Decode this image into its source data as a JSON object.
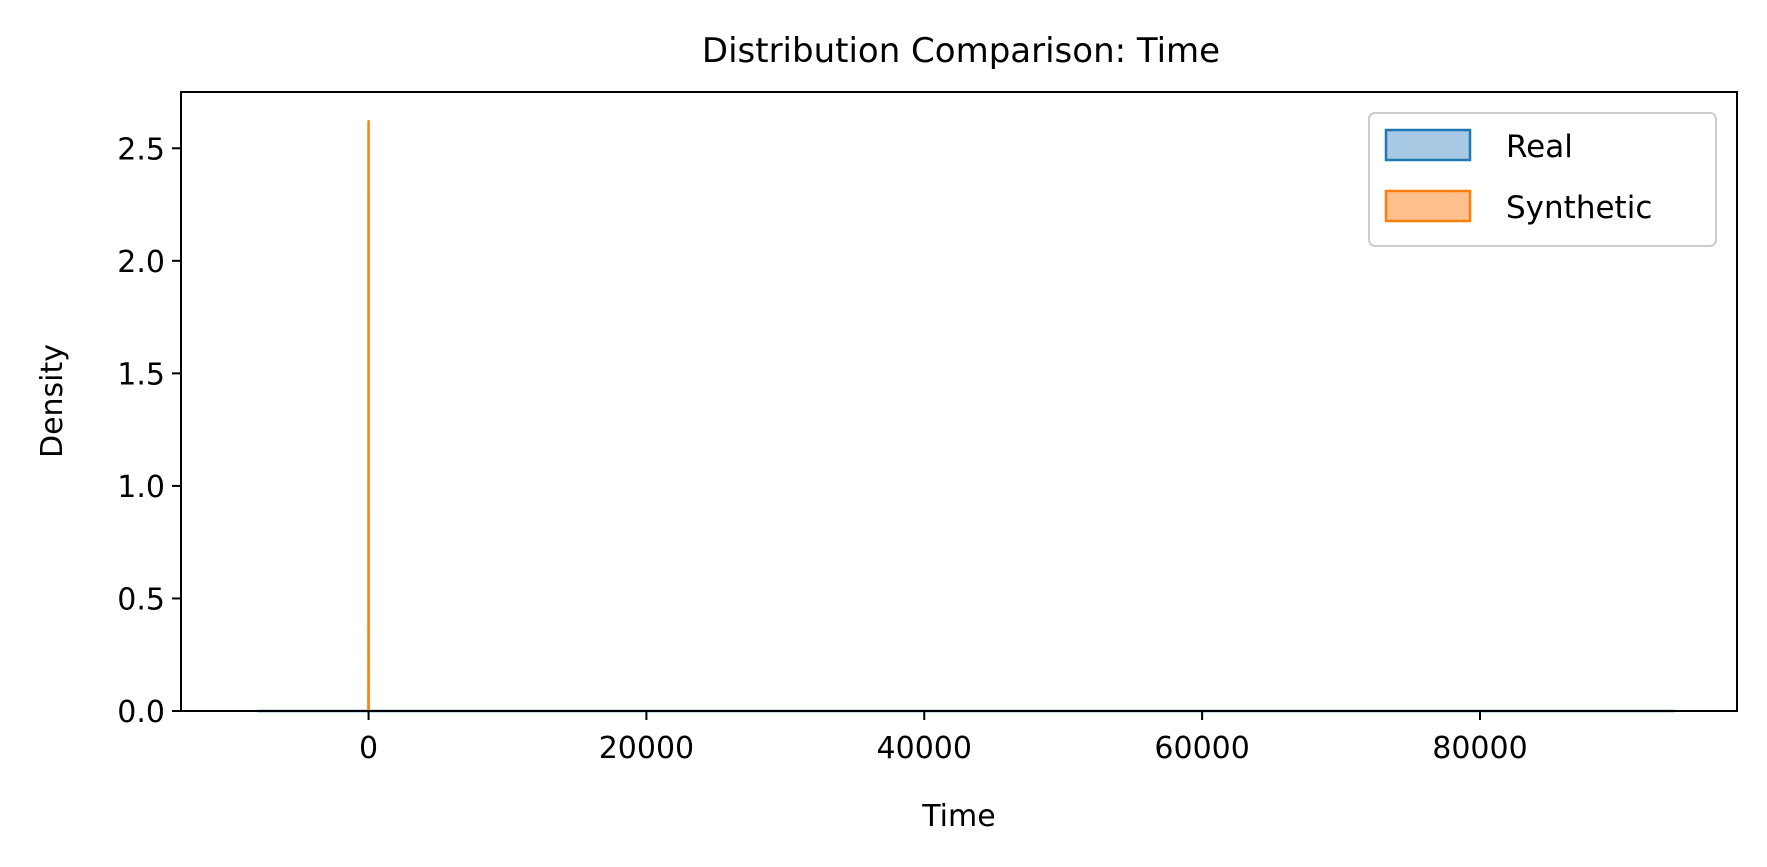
{
  "chart_data": {
    "type": "area",
    "title": "Distribution Comparison: Time",
    "xlabel": "Time",
    "ylabel": "Density",
    "xlim": [
      -13500,
      98500
    ],
    "ylim": [
      0,
      2.75
    ],
    "x_ticks": [
      0,
      20000,
      40000,
      60000,
      80000
    ],
    "y_ticks": [
      0.0,
      0.5,
      1.0,
      1.5,
      2.0,
      2.5
    ],
    "y_tick_labels": [
      "0.0",
      "0.5",
      "1.0",
      "1.5",
      "2.0",
      "2.5"
    ],
    "grid": false,
    "legend": {
      "position": "top-right",
      "entries": [
        "Real",
        "Synthetic"
      ]
    },
    "series": [
      {
        "name": "Real",
        "color": "#1f77b4",
        "fill": "#a6c8e3",
        "x": [
          -8000,
          0,
          20000,
          40000,
          60000,
          80000,
          94000
        ],
        "y": [
          0.0,
          1e-05,
          1e-05,
          1e-05,
          1e-05,
          1e-05,
          0.0
        ]
      },
      {
        "name": "Synthetic",
        "color": "#ff7f0e",
        "fill": "#ffc08d",
        "x": [
          -10,
          -2,
          0,
          2,
          10
        ],
        "y": [
          0.0,
          0.5,
          2.62,
          0.5,
          0.0
        ]
      }
    ]
  }
}
